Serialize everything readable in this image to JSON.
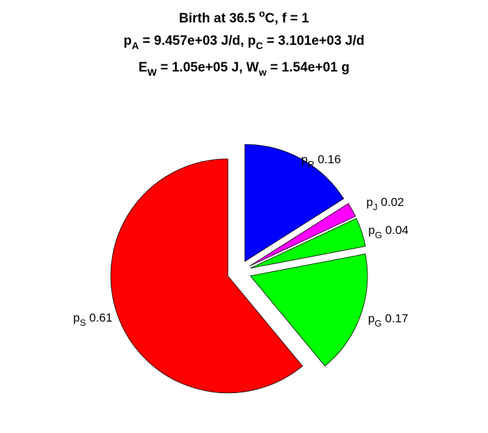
{
  "chart_data": {
    "type": "pie",
    "title": {
      "line1": {
        "text": "Birth at 36.5 ",
        "sup": "o",
        "rest": "C, f = 1"
      },
      "line2": {
        "p1": "p",
        "p1_sub": "A",
        "p1_rest": " = 9.457e+03 J/d, ",
        "p2": "p",
        "p2_sub": "C",
        "p2_rest": " = 3.101e+03 J/d"
      },
      "line3": {
        "e1": "E",
        "e1_sub": "W",
        "e1_rest": " = 1.05e+05 J, ",
        "e2": "W",
        "e2_sub": "w",
        "e2_rest": " = 1.54e+01 g"
      }
    },
    "slices": [
      {
        "name": "p",
        "sub": "R",
        "value": 0.16,
        "label": " 0.16",
        "color": "#0000ff"
      },
      {
        "name": "p",
        "sub": "J",
        "value": 0.02,
        "label": " 0.02",
        "color": "#ff00ff"
      },
      {
        "name": "p",
        "sub": "G",
        "value": 0.04,
        "label": " 0.04",
        "color": "#00ff00"
      },
      {
        "name": "p",
        "sub": "G",
        "value": 0.17,
        "label": " 0.17",
        "color": "#00ff00"
      },
      {
        "name": "p",
        "sub": "S",
        "value": 0.61,
        "label": " 0.61",
        "color": "#ff0000"
      }
    ],
    "start_angle_deg": 0,
    "direction": "clockwise",
    "exploded": true,
    "legend": "none"
  }
}
